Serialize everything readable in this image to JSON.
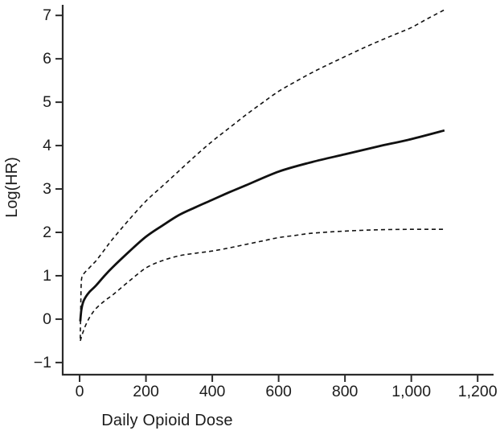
{
  "figure": {
    "background": "#ffffff"
  },
  "chart_data": {
    "type": "line",
    "title": "",
    "xlabel": "Daily Opioid Dose",
    "ylabel": "Log(HR)",
    "xlim": [
      -51,
      1248
    ],
    "ylim": [
      -1.28,
      7.17
    ],
    "grid": false,
    "legend": "none",
    "x_ticks": {
      "values": [
        0,
        200,
        400,
        600,
        800,
        1000,
        1200
      ],
      "labels": [
        "0",
        "200",
        "400",
        "600",
        "800",
        "1,000",
        "1,200"
      ]
    },
    "y_ticks": {
      "values": [
        -1,
        0,
        1,
        2,
        3,
        4,
        5,
        6,
        7
      ],
      "labels": [
        "−1",
        "0",
        "1",
        "2",
        "3",
        "4",
        "5",
        "6",
        "7"
      ]
    },
    "colors": {
      "curve": "#111111",
      "axis": "#2b2b2b",
      "text": "#1c1c1c",
      "background": "#ffffff"
    },
    "series": [
      {
        "name": "estimate",
        "style": "solid",
        "points": [
          [
            2,
            -0.05
          ],
          [
            3,
            0.05
          ],
          [
            5,
            0.2
          ],
          [
            8,
            0.32
          ],
          [
            12,
            0.42
          ],
          [
            20,
            0.53
          ],
          [
            30,
            0.63
          ],
          [
            50,
            0.78
          ],
          [
            75,
            1.0
          ],
          [
            100,
            1.2
          ],
          [
            150,
            1.56
          ],
          [
            200,
            1.9
          ],
          [
            250,
            2.16
          ],
          [
            300,
            2.4
          ],
          [
            350,
            2.58
          ],
          [
            400,
            2.75
          ],
          [
            450,
            2.92
          ],
          [
            500,
            3.08
          ],
          [
            600,
            3.4
          ],
          [
            700,
            3.62
          ],
          [
            800,
            3.8
          ],
          [
            900,
            3.98
          ],
          [
            1000,
            4.15
          ],
          [
            1100,
            4.35
          ]
        ]
      },
      {
        "name": "upper_95_ci",
        "style": "dashed",
        "points": [
          [
            2,
            -0.45
          ],
          [
            3,
            0.1
          ],
          [
            4,
            0.55
          ],
          [
            5,
            0.85
          ],
          [
            7,
            0.97
          ],
          [
            10,
            1.02
          ],
          [
            15,
            1.07
          ],
          [
            25,
            1.15
          ],
          [
            40,
            1.27
          ],
          [
            50,
            1.35
          ],
          [
            75,
            1.6
          ],
          [
            100,
            1.85
          ],
          [
            150,
            2.3
          ],
          [
            200,
            2.72
          ],
          [
            250,
            3.07
          ],
          [
            300,
            3.42
          ],
          [
            350,
            3.77
          ],
          [
            400,
            4.1
          ],
          [
            450,
            4.4
          ],
          [
            500,
            4.7
          ],
          [
            550,
            4.98
          ],
          [
            600,
            5.25
          ],
          [
            650,
            5.47
          ],
          [
            700,
            5.68
          ],
          [
            750,
            5.87
          ],
          [
            800,
            6.05
          ],
          [
            850,
            6.23
          ],
          [
            900,
            6.4
          ],
          [
            950,
            6.56
          ],
          [
            1000,
            6.72
          ],
          [
            1050,
            6.93
          ],
          [
            1100,
            7.13
          ]
        ]
      },
      {
        "name": "lower_95_ci",
        "style": "dashed",
        "points": [
          [
            2,
            -0.5
          ],
          [
            4,
            -0.45
          ],
          [
            8,
            -0.35
          ],
          [
            15,
            -0.2
          ],
          [
            25,
            -0.03
          ],
          [
            35,
            0.1
          ],
          [
            50,
            0.25
          ],
          [
            75,
            0.42
          ],
          [
            100,
            0.56
          ],
          [
            150,
            0.88
          ],
          [
            200,
            1.18
          ],
          [
            250,
            1.35
          ],
          [
            300,
            1.46
          ],
          [
            350,
            1.52
          ],
          [
            400,
            1.57
          ],
          [
            450,
            1.64
          ],
          [
            500,
            1.72
          ],
          [
            550,
            1.8
          ],
          [
            600,
            1.88
          ],
          [
            650,
            1.93
          ],
          [
            700,
            1.98
          ],
          [
            800,
            2.03
          ],
          [
            900,
            2.06
          ],
          [
            1000,
            2.07
          ],
          [
            1100,
            2.07
          ]
        ]
      }
    ]
  }
}
